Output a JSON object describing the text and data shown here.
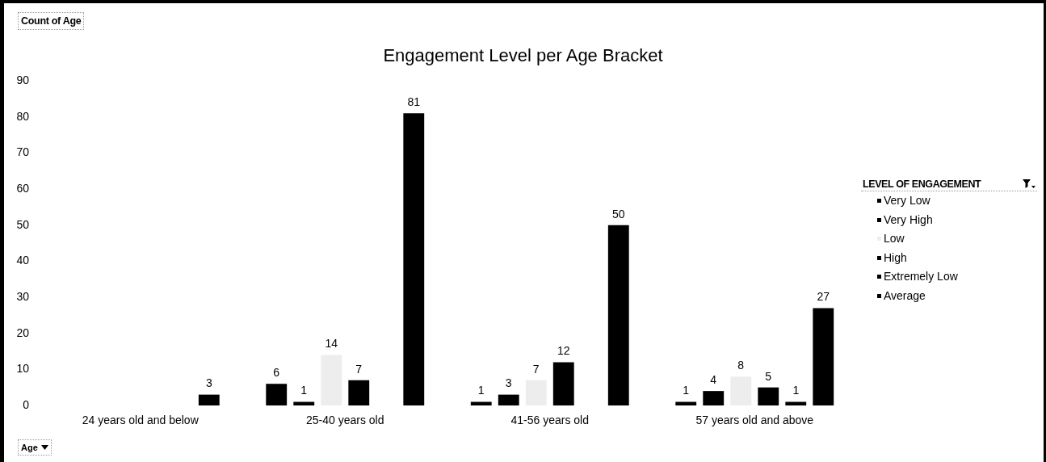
{
  "chart_data": {
    "type": "bar",
    "title": "Engagement Level per Age Bracket",
    "ylabel": "Count of Age",
    "xlabel": "Age",
    "legend_title": "LEVEL OF ENGAGEMENT",
    "categories": [
      "24 years old and below",
      "25-40 years old",
      "41-56 years old",
      "57 years old and above"
    ],
    "series": [
      {
        "name": "Very Low",
        "color": "#000000",
        "values": [
          null,
          6,
          1,
          1
        ]
      },
      {
        "name": "Very High",
        "color": "#000000",
        "values": [
          null,
          1,
          3,
          4
        ]
      },
      {
        "name": "Low",
        "color": "#ededed",
        "values": [
          null,
          14,
          7,
          8
        ]
      },
      {
        "name": "High",
        "color": "#000000",
        "values": [
          null,
          7,
          12,
          5
        ]
      },
      {
        "name": "Extremely Low",
        "color": "#000000",
        "values": [
          null,
          null,
          null,
          1
        ]
      },
      {
        "name": "Average",
        "color": "#000000",
        "values": [
          3,
          81,
          50,
          27
        ]
      }
    ],
    "ylim": [
      0,
      90
    ],
    "yticks": [
      0,
      10,
      20,
      30,
      40,
      50,
      60,
      70,
      80,
      90
    ],
    "data_labels": true,
    "legend": "right"
  }
}
